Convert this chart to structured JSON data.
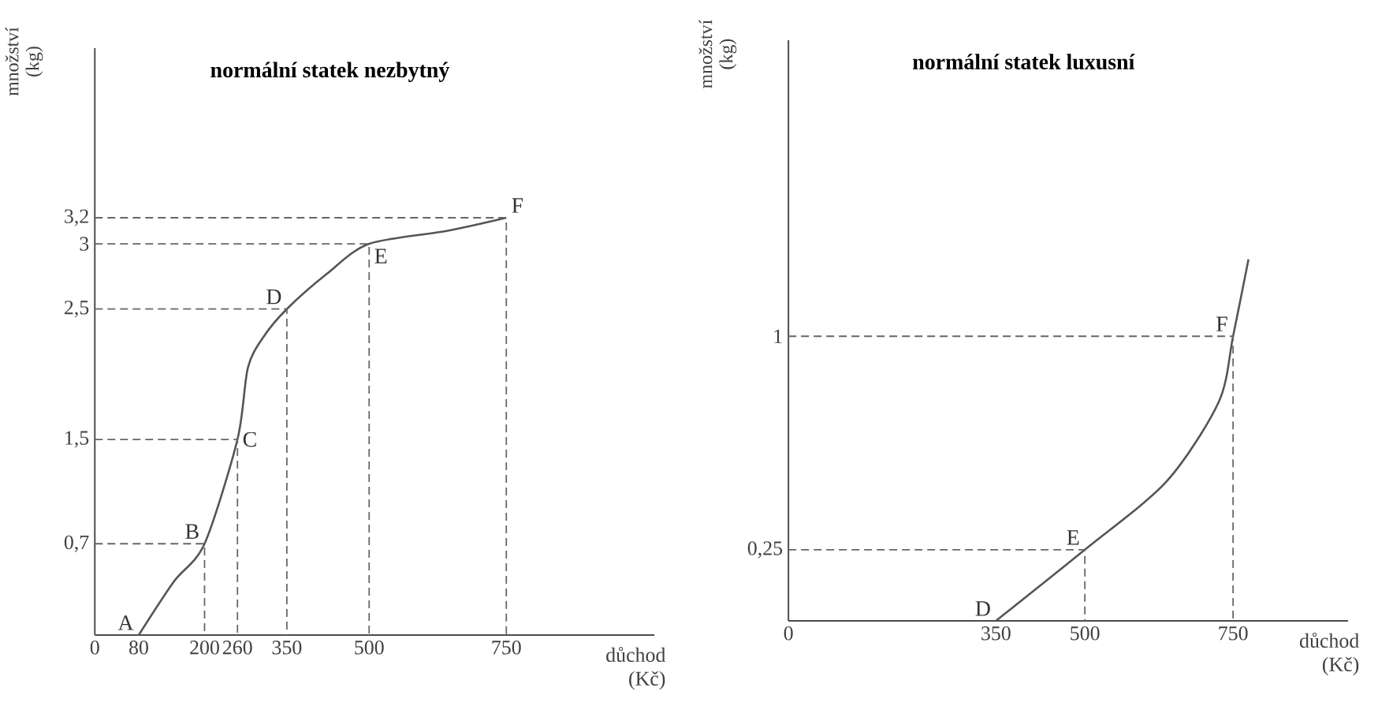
{
  "chart_data": [
    {
      "type": "line",
      "title": "normální statek nezbytný",
      "xlabel": "důchod (Kč)",
      "ylabel": "množství (kg)",
      "xlim": [
        0,
        1020
      ],
      "ylim": [
        0,
        4.5
      ],
      "xticks": [
        0,
        80,
        200,
        260,
        350,
        500,
        750
      ],
      "yticks": [
        {
          "value": 0.7,
          "label": "0,7"
        },
        {
          "value": 1.5,
          "label": "1,5"
        },
        {
          "value": 2.5,
          "label": "2,5"
        },
        3,
        {
          "value": 3.2,
          "label": "3,2"
        }
      ],
      "series": [
        {
          "color": "#555555",
          "x": [
            80,
            144,
            200,
            260,
            279,
            308,
            350,
            423,
            500,
            643,
            750
          ],
          "values": [
            0,
            0.41,
            0.7,
            1.5,
            2.05,
            2.29,
            2.5,
            2.77,
            3,
            3.1,
            3.2
          ]
        },
        {
          "color": "#666666",
          "line_style": "dashed",
          "x": [
            0,
            200,
            200
          ],
          "values": [
            0.7,
            0.7,
            0
          ]
        },
        {
          "color": "#666666",
          "line_style": "dashed",
          "x": [
            0,
            260,
            260
          ],
          "values": [
            1.5,
            1.5,
            0
          ]
        },
        {
          "color": "#666666",
          "line_style": "dashed",
          "x": [
            0,
            350,
            350
          ],
          "values": [
            2.5,
            2.5,
            0
          ]
        },
        {
          "color": "#666666",
          "line_style": "dashed",
          "x": [
            0,
            500,
            500
          ],
          "values": [
            3,
            3,
            0
          ]
        },
        {
          "color": "#666666",
          "line_style": "dashed",
          "x": [
            0,
            750,
            750
          ],
          "values": [
            3.2,
            3.2,
            0
          ]
        }
      ],
      "annotations": [
        {
          "text": "A",
          "x": 80,
          "y": 0
        },
        {
          "text": "B",
          "x": 200,
          "y": 0.7
        },
        {
          "text": "C",
          "x": 260,
          "y": 1.5
        },
        {
          "text": "D",
          "x": 350,
          "y": 2.5
        },
        {
          "text": "E",
          "x": 500,
          "y": 3
        },
        {
          "text": "F",
          "x": 750,
          "y": 3.2
        }
      ]
    },
    {
      "type": "line",
      "title": "normální statek luxusní",
      "xlabel": "důchod (Kč)",
      "ylabel": "množství (kg)",
      "xlim": [
        0,
        944
      ],
      "ylim": [
        0,
        2.04
      ],
      "xticks": [
        0,
        350,
        500,
        750
      ],
      "yticks": [
        {
          "value": 0.25,
          "label": "0,25"
        },
        1
      ],
      "series": [
        {
          "color": "#555555",
          "x": [
            350,
            500,
            638,
            726,
            750,
            776
          ],
          "values": [
            0,
            0.25,
            0.49,
            0.77,
            1,
            1.27
          ]
        },
        {
          "color": "#666666",
          "line_style": "dashed",
          "x": [
            0,
            500,
            500
          ],
          "values": [
            0.25,
            0.25,
            0
          ]
        },
        {
          "color": "#666666",
          "line_style": "dashed",
          "x": [
            0,
            750,
            750
          ],
          "values": [
            1,
            1,
            0
          ]
        }
      ],
      "annotations": [
        {
          "text": "D",
          "x": 350,
          "y": 0
        },
        {
          "text": "E",
          "x": 500,
          "y": 0.25
        },
        {
          "text": "F",
          "x": 750,
          "y": 1
        }
      ]
    }
  ]
}
